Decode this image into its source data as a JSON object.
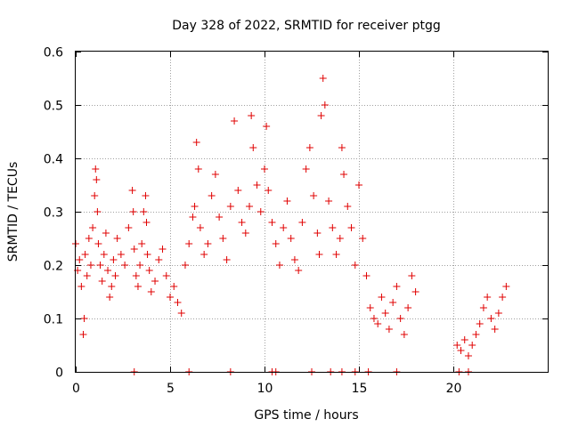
{
  "chart_data": {
    "type": "scatter",
    "title": "Day 328 of 2022, SRMTID for receiver ptgg",
    "xlabel": "GPS time / hours",
    "ylabel": "SRMTID / TECUs",
    "xlim": [
      0,
      25
    ],
    "ylim": [
      0,
      0.6
    ],
    "xticks": [
      0,
      5,
      10,
      15,
      20
    ],
    "xtick_labels": [
      "0",
      "5",
      "10",
      "15",
      "20"
    ],
    "yticks": [
      0,
      0.1,
      0.2,
      0.3,
      0.4,
      0.5,
      0.6
    ],
    "ytick_labels": [
      "0",
      "0.1",
      "0.2",
      "0.3",
      "0.4",
      "0.5",
      "0.6"
    ],
    "grid": true,
    "marker": "plus",
    "color": "#e00000",
    "series": [
      {
        "name": "SRMTID",
        "x": [
          0.0,
          0.1,
          0.2,
          0.3,
          0.4,
          0.45,
          0.5,
          0.6,
          0.7,
          0.8,
          0.9,
          1.0,
          1.05,
          1.1,
          1.15,
          1.2,
          1.3,
          1.4,
          1.5,
          1.6,
          1.7,
          1.8,
          1.9,
          2.0,
          2.1,
          2.2,
          2.4,
          2.6,
          2.8,
          3.0,
          3.05,
          3.1,
          3.2,
          3.3,
          3.4,
          3.5,
          3.6,
          3.7,
          3.75,
          3.8,
          3.9,
          4.0,
          4.2,
          4.4,
          4.6,
          4.8,
          5.0,
          5.2,
          5.4,
          5.6,
          5.8,
          6.0,
          6.2,
          6.3,
          6.4,
          6.5,
          6.6,
          6.8,
          7.0,
          7.2,
          7.4,
          7.6,
          7.8,
          8.0,
          8.2,
          8.4,
          8.6,
          8.8,
          9.0,
          9.2,
          9.3,
          9.4,
          9.6,
          9.8,
          10.0,
          10.1,
          10.2,
          10.4,
          10.6,
          10.8,
          11.0,
          11.2,
          11.4,
          11.6,
          11.8,
          12.0,
          12.2,
          12.4,
          12.6,
          12.8,
          12.9,
          13.0,
          13.1,
          13.2,
          13.4,
          13.6,
          13.8,
          14.0,
          14.1,
          14.2,
          14.4,
          14.6,
          14.8,
          15.0,
          15.2,
          15.4,
          15.6,
          15.8,
          16.0,
          16.2,
          16.4,
          16.6,
          16.8,
          17.0,
          17.2,
          17.4,
          17.6,
          17.8,
          18.0,
          20.2,
          20.4,
          20.6,
          20.8,
          21.0,
          21.2,
          21.4,
          21.6,
          21.8,
          22.0,
          22.2,
          22.4,
          22.6,
          22.8,
          3.1,
          6.0,
          8.2,
          10.4,
          10.6,
          12.5,
          13.5,
          14.1,
          14.8,
          15.5,
          17.0,
          20.3,
          20.8
        ],
        "y": [
          0.24,
          0.19,
          0.21,
          0.16,
          0.07,
          0.1,
          0.22,
          0.18,
          0.25,
          0.2,
          0.27,
          0.33,
          0.38,
          0.36,
          0.3,
          0.24,
          0.2,
          0.17,
          0.22,
          0.26,
          0.19,
          0.14,
          0.16,
          0.21,
          0.18,
          0.25,
          0.22,
          0.2,
          0.27,
          0.34,
          0.3,
          0.23,
          0.18,
          0.16,
          0.2,
          0.24,
          0.3,
          0.33,
          0.28,
          0.22,
          0.19,
          0.15,
          0.17,
          0.21,
          0.23,
          0.18,
          0.14,
          0.16,
          0.13,
          0.11,
          0.2,
          0.24,
          0.29,
          0.31,
          0.43,
          0.38,
          0.27,
          0.22,
          0.24,
          0.33,
          0.37,
          0.29,
          0.25,
          0.21,
          0.31,
          0.47,
          0.34,
          0.28,
          0.26,
          0.31,
          0.48,
          0.42,
          0.35,
          0.3,
          0.38,
          0.46,
          0.34,
          0.28,
          0.24,
          0.2,
          0.27,
          0.32,
          0.25,
          0.21,
          0.19,
          0.28,
          0.38,
          0.42,
          0.33,
          0.26,
          0.22,
          0.48,
          0.55,
          0.5,
          0.32,
          0.27,
          0.22,
          0.25,
          0.42,
          0.37,
          0.31,
          0.27,
          0.2,
          0.35,
          0.25,
          0.18,
          0.12,
          0.1,
          0.09,
          0.14,
          0.11,
          0.08,
          0.13,
          0.16,
          0.1,
          0.07,
          0.12,
          0.18,
          0.15,
          0.05,
          0.04,
          0.06,
          0.03,
          0.05,
          0.07,
          0.09,
          0.12,
          0.14,
          0.1,
          0.08,
          0.11,
          0.14,
          0.16,
          0.0,
          0.0,
          0.0,
          0.0,
          0.0,
          0.0,
          0.0,
          0.0,
          0.0,
          0.0,
          0.0,
          0.0,
          0.0
        ]
      }
    ]
  }
}
